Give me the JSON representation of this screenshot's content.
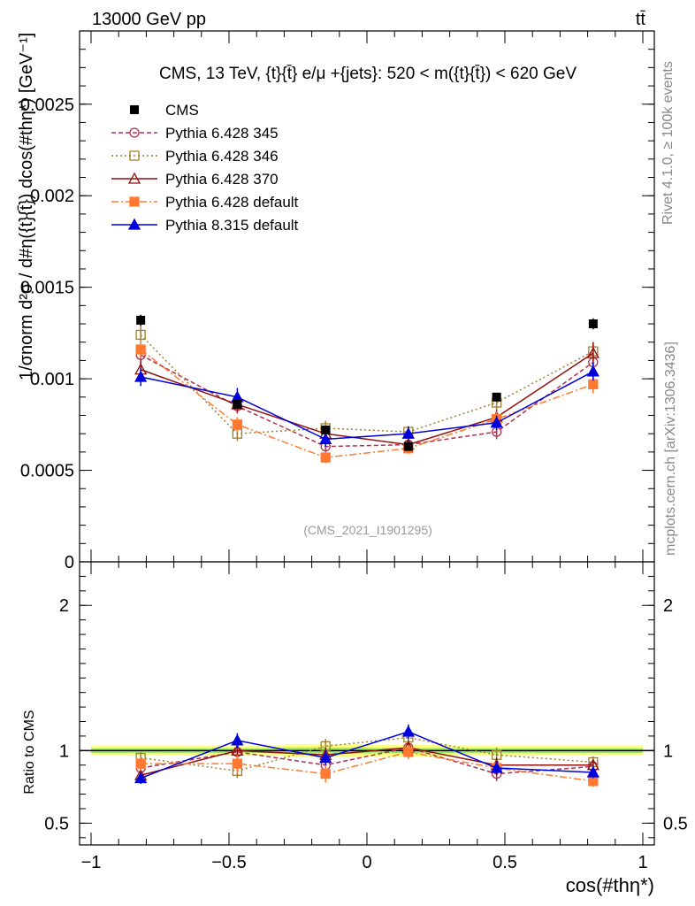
{
  "header": {
    "energy_label": "13000 GeV pp",
    "process_label": "tt̄"
  },
  "side_text": {
    "rivet": "Rivet 4.1.0, ≥ 100k events",
    "mcplots": "mcplots.cern.ch [arXiv:1306.3436]"
  },
  "chart_data": {
    "type": "line",
    "title": "CMS, 13 TeV, {t}{t̄} e/μ +{jets}: 520 < m({t}{t̄}) < 620 GeV",
    "watermark": "(CMS_2021_I1901295)",
    "xlabel": "cos(#thη*)",
    "ylabel": "1/σnorm d²σ / d#η({t}{t̄}) dcos(#thη*) [GeV⁻¹]",
    "ratio_ylabel": "Ratio to CMS",
    "xlim": [
      -1,
      1
    ],
    "ylim": [
      0,
      0.0029
    ],
    "ratio_ylim": [
      0.35,
      2.3
    ],
    "x_ticks": [
      -1,
      -0.5,
      0,
      0.5,
      1
    ],
    "x_tick_labels": [
      "−1",
      "−0.5",
      "0",
      "0.5",
      "1"
    ],
    "y_ticks": [
      0,
      0.0005,
      0.001,
      0.0015,
      0.002,
      0.0025
    ],
    "y_tick_labels": [
      "0",
      "0.0005",
      "0.001",
      "0.0015",
      "0.002",
      "0.0025"
    ],
    "ratio_ticks": [
      0.5,
      1,
      2
    ],
    "ratio_tick_labels": [
      "0.5",
      "1",
      "2"
    ],
    "x": [
      -0.82,
      -0.47,
      -0.15,
      0.15,
      0.47,
      0.82
    ],
    "x_edges": [
      -1.0,
      -0.65,
      -0.3,
      0.0,
      0.3,
      0.65,
      1.0
    ],
    "data": {
      "name": "CMS",
      "values": [
        0.00132,
        0.00086,
        0.00072,
        0.00063,
        0.0009,
        0.0013
      ],
      "errors": [
        3e-05,
        2e-05,
        2e-05,
        2e-05,
        2e-05,
        3e-05
      ],
      "ratio_band": [
        0.035,
        0.035,
        0.045,
        0.04,
        0.035,
        0.035
      ],
      "color": "#000000"
    },
    "series": [
      {
        "name": "Pythia 6.428 345",
        "color": "#b03050",
        "dash": "5,3",
        "marker": "circle-open",
        "values": [
          0.00113,
          0.00085,
          0.00063,
          0.00064,
          0.00071,
          0.00109
        ],
        "errors": [
          5e-05,
          4e-05,
          3e-05,
          3e-05,
          4e-05,
          5e-05
        ],
        "ratio": [
          0.88,
          0.99,
          0.9,
          1.02,
          0.84,
          0.89
        ],
        "ratio_errors": [
          0.04,
          0.05,
          0.04,
          0.05,
          0.05,
          0.04
        ]
      },
      {
        "name": "Pythia 6.428 346",
        "color": "#a08030",
        "dash": "2,3",
        "marker": "square-open",
        "values": [
          0.00124,
          0.0007,
          0.00073,
          0.00071,
          0.00087,
          0.00115
        ],
        "errors": [
          5e-05,
          4e-05,
          4e-05,
          3e-05,
          4e-05,
          5e-05
        ],
        "ratio": [
          0.95,
          0.86,
          1.03,
          1.09,
          0.97,
          0.92
        ],
        "ratio_errors": [
          0.04,
          0.05,
          0.05,
          0.05,
          0.05,
          0.04
        ]
      },
      {
        "name": "Pythia 6.428 370",
        "color": "#901010",
        "dash": "",
        "marker": "triangle-open",
        "values": [
          0.00105,
          0.00086,
          0.0007,
          0.00064,
          0.00079,
          0.00114
        ],
        "errors": [
          5e-05,
          4e-05,
          4e-05,
          3e-05,
          4e-05,
          6e-05
        ],
        "ratio": [
          0.83,
          1.0,
          0.97,
          1.02,
          0.9,
          0.9
        ],
        "ratio_errors": [
          0.04,
          0.05,
          0.05,
          0.05,
          0.05,
          0.04
        ]
      },
      {
        "name": "Pythia 6.428 default",
        "color": "#ff7a30",
        "dash": "8,3,2,3",
        "marker": "square",
        "values": [
          0.00116,
          0.00075,
          0.00057,
          0.00062,
          0.00078,
          0.00097
        ],
        "errors": [
          5e-05,
          4e-05,
          3e-05,
          3e-05,
          4e-05,
          5e-05
        ],
        "ratio": [
          0.91,
          0.91,
          0.84,
          0.99,
          0.88,
          0.79
        ],
        "ratio_errors": [
          0.05,
          0.06,
          0.06,
          0.05,
          0.05,
          0.04
        ]
      },
      {
        "name": "Pythia 8.315 default",
        "color": "#0000dd",
        "dash": "",
        "marker": "triangle",
        "values": [
          0.00101,
          0.0009,
          0.00067,
          0.0007,
          0.00076,
          0.00104
        ],
        "errors": [
          5e-05,
          5e-05,
          4e-05,
          4e-05,
          4e-05,
          5e-05
        ],
        "ratio": [
          0.81,
          1.07,
          0.95,
          1.13,
          0.88,
          0.85
        ],
        "ratio_errors": [
          0.04,
          0.05,
          0.05,
          0.05,
          0.05,
          0.04
        ]
      }
    ]
  }
}
